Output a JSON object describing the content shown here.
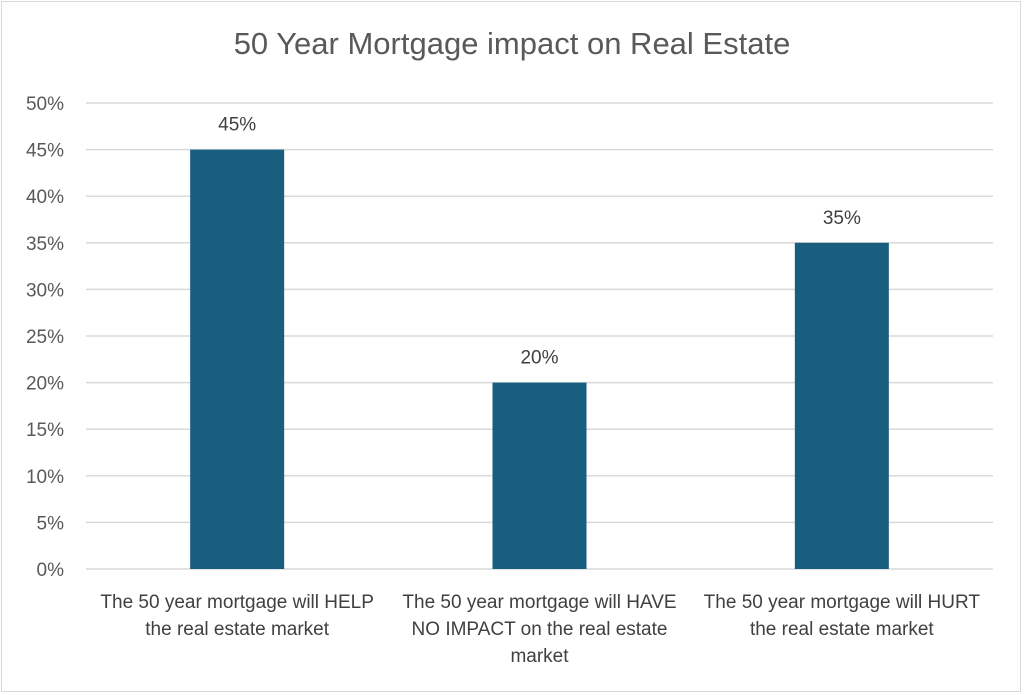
{
  "chart_data": {
    "type": "bar",
    "title": "50 Year Mortgage impact on Real Estate",
    "categories": [
      "The 50 year mortgage will HELP the real estate market",
      "The 50 year mortgage will HAVE NO IMPACT on the real estate market",
      "The 50 year mortgage will HURT the real estate market"
    ],
    "values": [
      45,
      20,
      35
    ],
    "data_labels": [
      "45%",
      "20%",
      "35%"
    ],
    "ylim": [
      0,
      50
    ],
    "yticks": [
      "0%",
      "5%",
      "10%",
      "15%",
      "20%",
      "25%",
      "30%",
      "35%",
      "40%",
      "45%",
      "50%"
    ],
    "xlabel": "",
    "ylabel": "",
    "grid": true,
    "bar_color": "#175e7f"
  }
}
